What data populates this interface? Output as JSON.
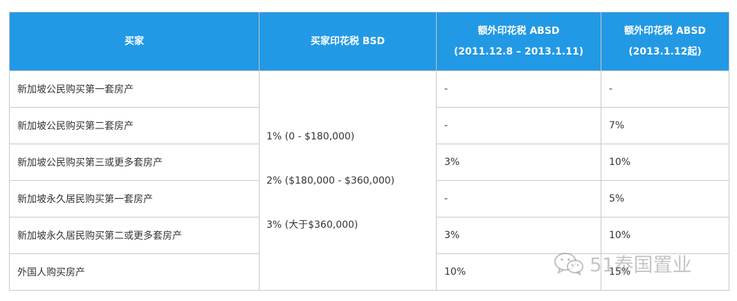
{
  "table": {
    "headers": {
      "buyer": "买家",
      "bsd": "买家印花税 BSD",
      "absd_2011_title": "额外印花税 ABSD",
      "absd_2011_period": "(2011.12.8 – 2013.1.11)",
      "absd_2013_title": "额外印花税 ABSD",
      "absd_2013_period": "(2013.1.12起)"
    },
    "bsd_rates": [
      "1% (0 - $180,000)",
      "2% ($180,000 - $360,000)",
      "3% (大于$360,000)"
    ],
    "rows": [
      {
        "buyer": "新加坡公民购买第一套房产",
        "absd_2011": "-",
        "absd_2013": "-"
      },
      {
        "buyer": "新加坡公民购买第二套房产",
        "absd_2011": "-",
        "absd_2013": "7%"
      },
      {
        "buyer": "新加坡公民购买第三或更多套房产",
        "absd_2011": "3%",
        "absd_2013": "10%"
      },
      {
        "buyer": "新加坡永久居民购买第一套房产",
        "absd_2011": "-",
        "absd_2013": "5%"
      },
      {
        "buyer": "新加坡永久居民购买第二或更多套房产",
        "absd_2011": "3%",
        "absd_2013": "10%"
      },
      {
        "buyer": "外国人购买房产",
        "absd_2011": "10%",
        "absd_2013": "15%"
      }
    ]
  },
  "watermark": {
    "text": "51泰国置业",
    "icon": "wechat-icon"
  },
  "colors": {
    "header_bg": "#2299e5",
    "header_text": "#ffffff",
    "border": "#c7c7c7",
    "body_text": "#333333"
  }
}
